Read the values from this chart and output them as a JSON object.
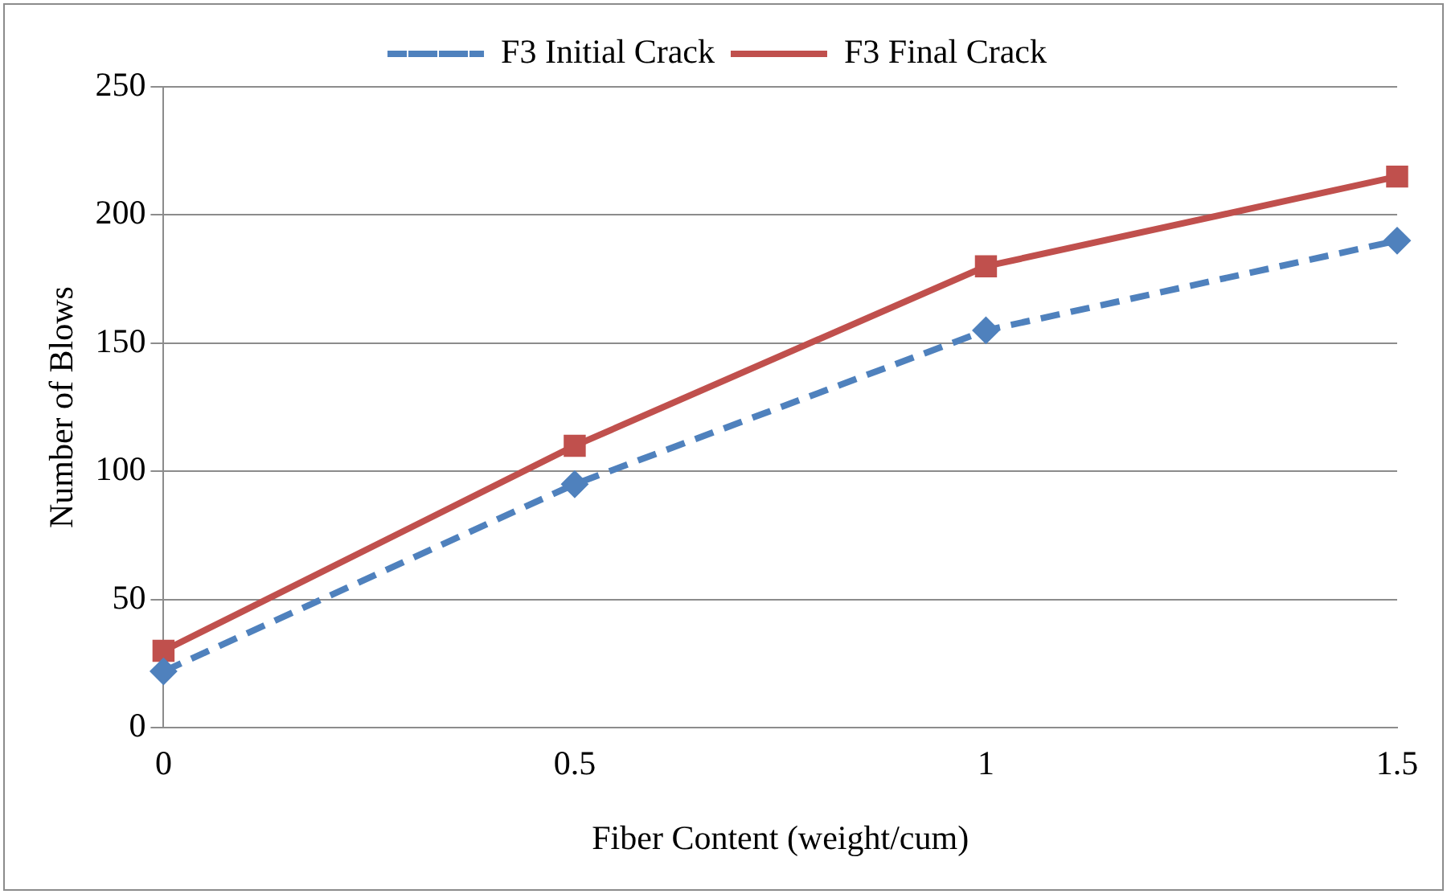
{
  "chart_data": {
    "type": "line",
    "xlabel": "Fiber Content (weight/cum)",
    "ylabel": "Number of Blows",
    "categories": [
      "0",
      "0.5",
      "1",
      "1.5"
    ],
    "series": [
      {
        "name": "F3 Initial Crack",
        "color": "#4f81bd",
        "values": [
          22,
          95,
          155,
          190
        ],
        "marker": "diamond",
        "line_style": "dashed"
      },
      {
        "name": "F3 Final Crack",
        "color": "#c0504d",
        "values": [
          30,
          110,
          180,
          215
        ],
        "marker": "square",
        "line_style": "solid"
      }
    ],
    "ylim": [
      0,
      250
    ],
    "yticks": [
      0,
      50,
      100,
      150,
      200,
      250
    ],
    "grid": "y",
    "legend": "top"
  }
}
